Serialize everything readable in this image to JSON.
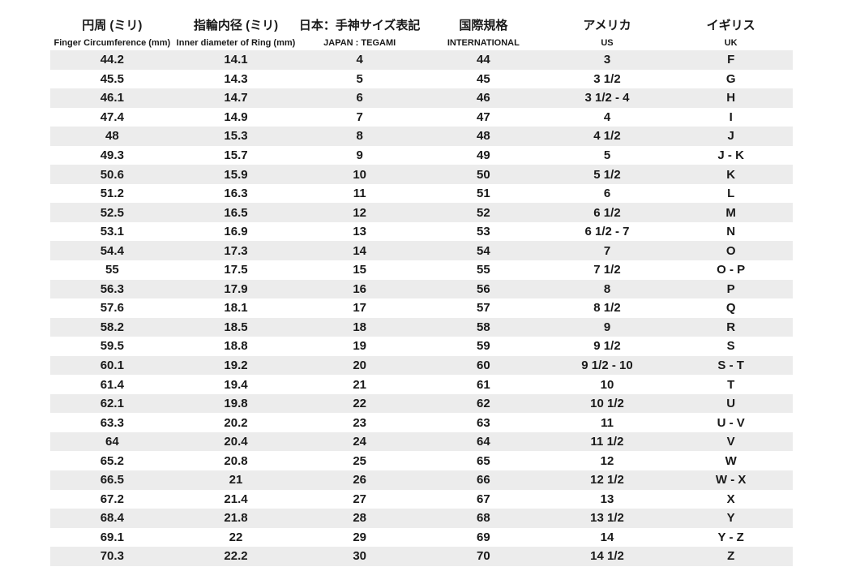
{
  "colors": {
    "background": "#ffffff",
    "stripe": "#ececec",
    "text": "#1a1a1a"
  },
  "chart_data": {
    "type": "table",
    "title": "Ring size conversion table",
    "columns": [
      {
        "jp": "円周 (ミリ)",
        "en": "Finger Circumference (mm)"
      },
      {
        "jp": "指輪内径 (ミリ)",
        "en": "Inner diameter of Ring (mm)"
      },
      {
        "jp": "日本：手神サイズ表記",
        "en": "JAPAN : TEGAMI"
      },
      {
        "jp": "国際規格",
        "en": "INTERNATIONAL"
      },
      {
        "jp": "アメリカ",
        "en": "US"
      },
      {
        "jp": "イギリス",
        "en": "UK"
      }
    ],
    "rows": [
      [
        "44.2",
        "14.1",
        "4",
        "44",
        "3",
        "F"
      ],
      [
        "45.5",
        "14.3",
        "5",
        "45",
        "3 1/2",
        "G"
      ],
      [
        "46.1",
        "14.7",
        "6",
        "46",
        "3 1/2 - 4",
        "H"
      ],
      [
        "47.4",
        "14.9",
        "7",
        "47",
        "4",
        "I"
      ],
      [
        "48",
        "15.3",
        "8",
        "48",
        "4 1/2",
        "J"
      ],
      [
        "49.3",
        "15.7",
        "9",
        "49",
        "5",
        "J - K"
      ],
      [
        "50.6",
        "15.9",
        "10",
        "50",
        "5 1/2",
        "K"
      ],
      [
        "51.2",
        "16.3",
        "11",
        "51",
        "6",
        "L"
      ],
      [
        "52.5",
        "16.5",
        "12",
        "52",
        "6 1/2",
        "M"
      ],
      [
        "53.1",
        "16.9",
        "13",
        "53",
        "6 1/2 - 7",
        "N"
      ],
      [
        "54.4",
        "17.3",
        "14",
        "54",
        "7",
        "O"
      ],
      [
        "55",
        "17.5",
        "15",
        "55",
        "7 1/2",
        "O - P"
      ],
      [
        "56.3",
        "17.9",
        "16",
        "56",
        "8",
        "P"
      ],
      [
        "57.6",
        "18.1",
        "17",
        "57",
        "8 1/2",
        "Q"
      ],
      [
        "58.2",
        "18.5",
        "18",
        "58",
        "9",
        "R"
      ],
      [
        "59.5",
        "18.8",
        "19",
        "59",
        "9 1/2",
        "S"
      ],
      [
        "60.1",
        "19.2",
        "20",
        "60",
        "9 1/2 - 10",
        "S - T"
      ],
      [
        "61.4",
        "19.4",
        "21",
        "61",
        "10",
        "T"
      ],
      [
        "62.1",
        "19.8",
        "22",
        "62",
        "10 1/2",
        "U"
      ],
      [
        "63.3",
        "20.2",
        "23",
        "63",
        "11",
        "U - V"
      ],
      [
        "64",
        "20.4",
        "24",
        "64",
        "11 1/2",
        "V"
      ],
      [
        "65.2",
        "20.8",
        "25",
        "65",
        "12",
        "W"
      ],
      [
        "66.5",
        "21",
        "26",
        "66",
        "12 1/2",
        "W - X"
      ],
      [
        "67.2",
        "21.4",
        "27",
        "67",
        "13",
        "X"
      ],
      [
        "68.4",
        "21.8",
        "28",
        "68",
        "13 1/2",
        "Y"
      ],
      [
        "69.1",
        "22",
        "29",
        "69",
        "14",
        "Y - Z"
      ],
      [
        "70.3",
        "22.2",
        "30",
        "70",
        "14 1/2",
        "Z"
      ]
    ]
  }
}
